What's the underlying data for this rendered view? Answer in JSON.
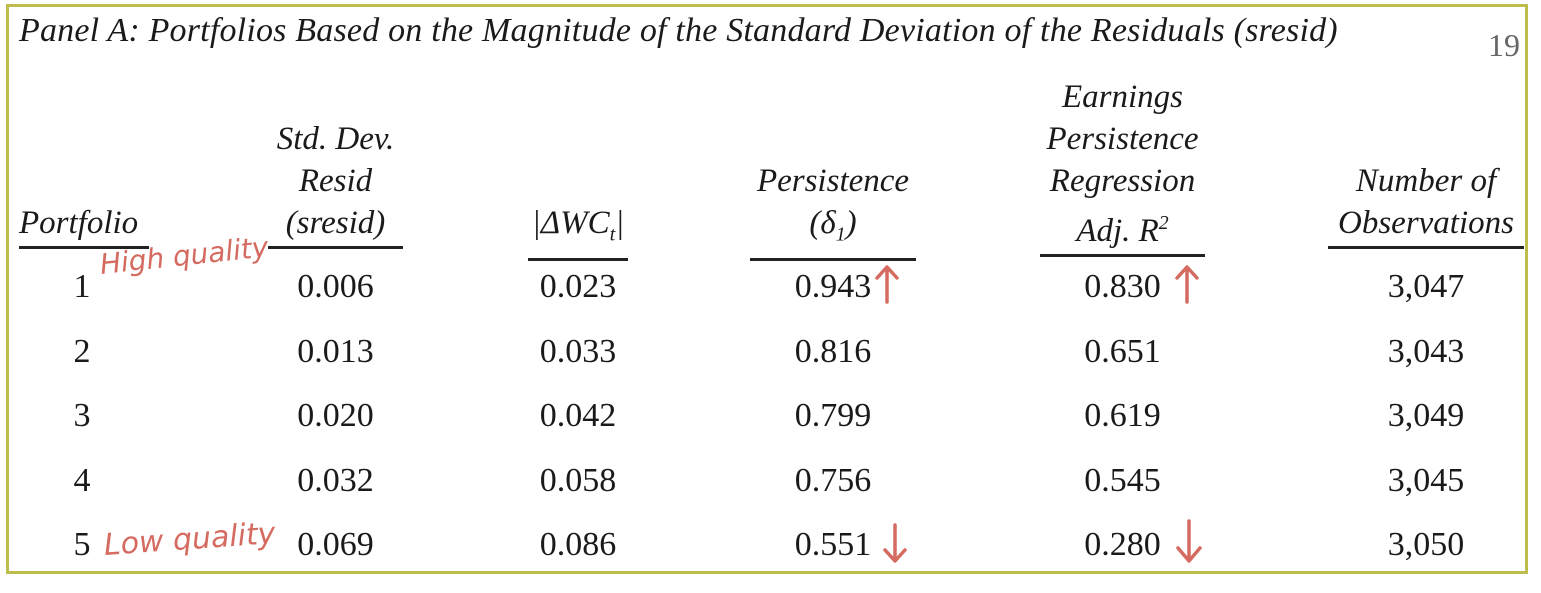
{
  "panel_title": "Panel A: Portfolios Based on the Magnitude of the Standard Deviation of the Residuals (sresid)",
  "page_number": "19",
  "headers": {
    "portfolio": "Portfolio",
    "sresid": [
      "Std. Dev.",
      "Resid",
      "(sresid)"
    ],
    "dwc": "|ΔWC",
    "dwc_sub": "t",
    "dwc_end": "|",
    "persistence": [
      "Persistence"
    ],
    "persistence_delta": "(δ",
    "persistence_sub": "1",
    "persistence_end": ")",
    "r2": [
      "Earnings",
      "Persistence",
      "Regression"
    ],
    "r2_last": "Adj. R",
    "r2_sup": "2",
    "obs": [
      "Number of",
      "Observations"
    ]
  },
  "rows": [
    {
      "portfolio": "1",
      "sresid": "0.006",
      "dwc": "0.023",
      "persistence": "0.943",
      "r2": "0.830",
      "obs": "3,047"
    },
    {
      "portfolio": "2",
      "sresid": "0.013",
      "dwc": "0.033",
      "persistence": "0.816",
      "r2": "0.651",
      "obs": "3,043"
    },
    {
      "portfolio": "3",
      "sresid": "0.020",
      "dwc": "0.042",
      "persistence": "0.799",
      "r2": "0.619",
      "obs": "3,049"
    },
    {
      "portfolio": "4",
      "sresid": "0.032",
      "dwc": "0.058",
      "persistence": "0.756",
      "r2": "0.545",
      "obs": "3,045"
    },
    {
      "portfolio": "5",
      "sresid": "0.069",
      "dwc": "0.086",
      "persistence": "0.551",
      "r2": "0.280",
      "obs": "3,050"
    }
  ],
  "annotations": {
    "high_quality": "High quality",
    "low_quality": "Low quality",
    "arrow_up": "up-arrow-icon",
    "arrow_down": "down-arrow-icon",
    "ink_color": "#d56b60",
    "frame_color": "#bcbd4a"
  }
}
